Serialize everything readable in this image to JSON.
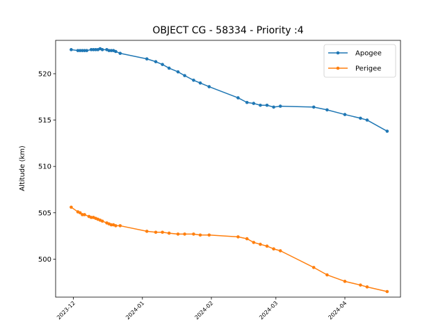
{
  "chart_data": {
    "type": "line",
    "title": "OBJECT CG - 58334 - Priority :4",
    "xlabel": "",
    "ylabel": "Altitude (km)",
    "x_tick_labels": [
      "2023-12",
      "2024-01",
      "2024-02",
      "2024-03",
      "2024-04"
    ],
    "x_tick_dates": [
      "2023-12-01",
      "2024-01-01",
      "2024-02-01",
      "2024-03-01",
      "2024-04-01"
    ],
    "y_ticks": [
      500,
      505,
      510,
      515,
      520
    ],
    "xlim": [
      "2023-11-23",
      "2024-04-26"
    ],
    "ylim": [
      495.9,
      523.6
    ],
    "grid": false,
    "legend_position": "top-right",
    "colors": {
      "Apogee": "#1f77b4",
      "Perigee": "#ff7f0e"
    },
    "series": [
      {
        "name": "Apogee",
        "points": [
          [
            "2023-11-30",
            522.6
          ],
          [
            "2023-12-03",
            522.5
          ],
          [
            "2023-12-04",
            522.5
          ],
          [
            "2023-12-05",
            522.5
          ],
          [
            "2023-12-06",
            522.5
          ],
          [
            "2023-12-07",
            522.5
          ],
          [
            "2023-12-09",
            522.6
          ],
          [
            "2023-12-10",
            522.6
          ],
          [
            "2023-12-11",
            522.6
          ],
          [
            "2023-12-12",
            522.6
          ],
          [
            "2023-12-13",
            522.7
          ],
          [
            "2023-12-14",
            522.6
          ],
          [
            "2023-12-16",
            522.6
          ],
          [
            "2023-12-17",
            522.5
          ],
          [
            "2023-12-18",
            522.5
          ],
          [
            "2023-12-19",
            522.5
          ],
          [
            "2023-12-20",
            522.4
          ],
          [
            "2023-12-22",
            522.2
          ],
          [
            "2024-01-03",
            521.6
          ],
          [
            "2024-01-07",
            521.3
          ],
          [
            "2024-01-10",
            521.0
          ],
          [
            "2024-01-13",
            520.6
          ],
          [
            "2024-01-17",
            520.2
          ],
          [
            "2024-01-20",
            519.8
          ],
          [
            "2024-01-24",
            519.3
          ],
          [
            "2024-01-27",
            519.0
          ],
          [
            "2024-01-31",
            518.6
          ],
          [
            "2024-02-13",
            517.4
          ],
          [
            "2024-02-17",
            516.9
          ],
          [
            "2024-02-20",
            516.8
          ],
          [
            "2024-02-23",
            516.6
          ],
          [
            "2024-02-26",
            516.6
          ],
          [
            "2024-02-29",
            516.4
          ],
          [
            "2024-03-03",
            516.5
          ],
          [
            "2024-03-18",
            516.4
          ],
          [
            "2024-03-24",
            516.1
          ],
          [
            "2024-04-01",
            515.6
          ],
          [
            "2024-04-08",
            515.2
          ],
          [
            "2024-04-11",
            515.0
          ],
          [
            "2024-04-20",
            513.8
          ]
        ]
      },
      {
        "name": "Perigee",
        "points": [
          [
            "2023-11-30",
            505.6
          ],
          [
            "2023-12-03",
            505.1
          ],
          [
            "2023-12-04",
            505.0
          ],
          [
            "2023-12-05",
            504.8
          ],
          [
            "2023-12-06",
            504.8
          ],
          [
            "2023-12-08",
            504.6
          ],
          [
            "2023-12-09",
            504.5
          ],
          [
            "2023-12-10",
            504.5
          ],
          [
            "2023-12-11",
            504.4
          ],
          [
            "2023-12-12",
            504.3
          ],
          [
            "2023-12-13",
            504.2
          ],
          [
            "2023-12-14",
            504.1
          ],
          [
            "2023-12-16",
            503.9
          ],
          [
            "2023-12-17",
            503.8
          ],
          [
            "2023-12-18",
            503.7
          ],
          [
            "2023-12-19",
            503.7
          ],
          [
            "2023-12-20",
            503.6
          ],
          [
            "2023-12-22",
            503.6
          ],
          [
            "2024-01-03",
            503.0
          ],
          [
            "2024-01-07",
            502.9
          ],
          [
            "2024-01-10",
            502.9
          ],
          [
            "2024-01-13",
            502.8
          ],
          [
            "2024-01-17",
            502.7
          ],
          [
            "2024-01-20",
            502.7
          ],
          [
            "2024-01-24",
            502.7
          ],
          [
            "2024-01-27",
            502.6
          ],
          [
            "2024-01-31",
            502.6
          ],
          [
            "2024-02-13",
            502.4
          ],
          [
            "2024-02-17",
            502.2
          ],
          [
            "2024-02-20",
            501.8
          ],
          [
            "2024-02-23",
            501.6
          ],
          [
            "2024-02-26",
            501.4
          ],
          [
            "2024-02-29",
            501.1
          ],
          [
            "2024-03-03",
            500.9
          ],
          [
            "2024-03-18",
            499.1
          ],
          [
            "2024-03-24",
            498.3
          ],
          [
            "2024-04-01",
            497.6
          ],
          [
            "2024-04-08",
            497.2
          ],
          [
            "2024-04-11",
            497.0
          ],
          [
            "2024-04-20",
            496.5
          ]
        ]
      }
    ]
  }
}
